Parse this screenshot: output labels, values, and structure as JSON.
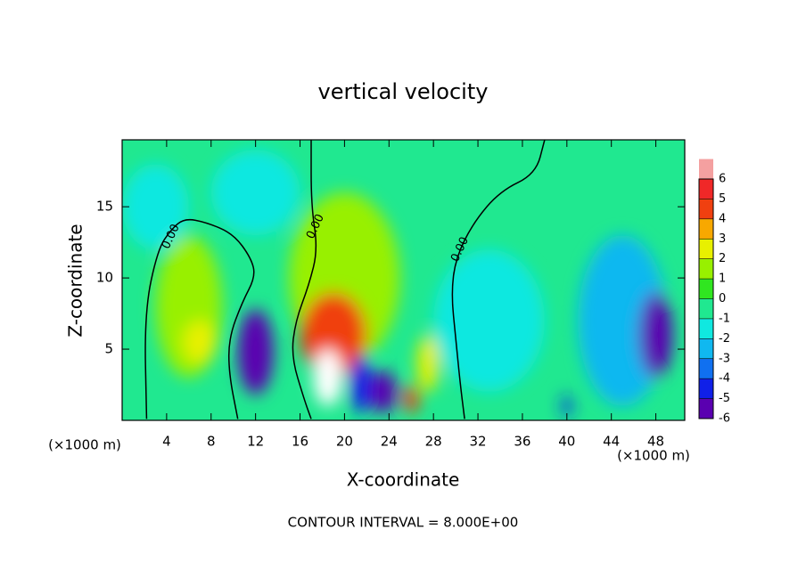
{
  "chart_data": {
    "type": "contour",
    "title": "vertical velocity",
    "xlabel": "X-coordinate",
    "ylabel": "Z-coordinate",
    "x_unit_labels": [
      "(×1000 m)",
      "(×1000 m)"
    ],
    "footer": "CONTOUR INTERVAL = 8.000E+00",
    "xlim": [
      0,
      50.6
    ],
    "ylim": [
      0,
      19.7
    ],
    "xticks": [
      4,
      8,
      12,
      16,
      20,
      24,
      28,
      32,
      36,
      40,
      44,
      48
    ],
    "yticks": [
      5,
      10,
      15
    ],
    "levels": [
      -6,
      -5,
      -4,
      -3,
      -2,
      -1,
      0,
      1,
      2,
      3,
      4,
      5,
      6
    ],
    "colors": [
      "#5a00b0",
      "#1020e8",
      "#1070f0",
      "#10b8f0",
      "#10e8e0",
      "#20e890",
      "#30e620",
      "#98f000",
      "#e8f000",
      "#f8a800",
      "#f04010",
      "#f02828",
      "#f4a0a0"
    ],
    "above_color": "#ffffff",
    "base_value": -0.5,
    "features": [
      {
        "x": 20,
        "y": 10,
        "value": 1.8,
        "rx": 5,
        "ry": 6
      },
      {
        "x": 6,
        "y": 8,
        "value": 1.5,
        "rx": 3,
        "ry": 5
      },
      {
        "x": 33,
        "y": 7,
        "value": -1.5,
        "rx": 5,
        "ry": 5
      },
      {
        "x": 45,
        "y": 7,
        "value": -2,
        "rx": 4,
        "ry": 6
      },
      {
        "x": 3,
        "y": 15,
        "value": -1.5,
        "rx": 3,
        "ry": 3
      },
      {
        "x": 12,
        "y": 16,
        "value": -1,
        "rx": 4,
        "ry": 3
      },
      {
        "x": 7,
        "y": 5.5,
        "value": 2.5,
        "rx": 1.5,
        "ry": 1.5
      },
      {
        "x": 19,
        "y": 6,
        "value": 4.5,
        "rx": 3,
        "ry": 3
      },
      {
        "x": 27.5,
        "y": 4,
        "value": 3,
        "rx": 1,
        "ry": 2
      },
      {
        "x": 12,
        "y": 4.8,
        "value": -5,
        "rx": 1.6,
        "ry": 3
      },
      {
        "x": 48,
        "y": 6,
        "value": -5,
        "rx": 1.5,
        "ry": 3
      },
      {
        "x": 21.5,
        "y": 2.5,
        "value": -4,
        "rx": 1,
        "ry": 2
      },
      {
        "x": 23.5,
        "y": 2,
        "value": -5,
        "rx": 1.2,
        "ry": 1.5
      },
      {
        "x": 26,
        "y": 1.5,
        "value": 5,
        "rx": 0.7,
        "ry": 1
      },
      {
        "x": 40,
        "y": 1,
        "value": -4,
        "rx": 0.4,
        "ry": 0.8
      },
      {
        "x": 18.5,
        "y": 3,
        "value": 9,
        "rx": 1.3,
        "ry": 2
      }
    ],
    "contours": [
      {
        "label": "0.00",
        "label_at": [
          4.4,
          12.9
        ],
        "points": [
          [
            2.2,
            0.1
          ],
          [
            2,
            7.6
          ],
          [
            3.2,
            12
          ],
          [
            4.4,
            13.4
          ],
          [
            5.6,
            14.2
          ],
          [
            7.6,
            13.9
          ],
          [
            10,
            13.1
          ],
          [
            11.6,
            11.4
          ],
          [
            12,
            10.1
          ],
          [
            10.8,
            8.3
          ],
          [
            9.6,
            5.8
          ],
          [
            9.6,
            3.3
          ],
          [
            10.4,
            0.1
          ]
        ]
      },
      {
        "label": "0.00",
        "label_at": [
          17.4,
          13.6
        ],
        "points": [
          [
            17,
            19.7
          ],
          [
            17,
            15.1
          ],
          [
            17.6,
            12
          ],
          [
            16.8,
            9.5
          ],
          [
            15.6,
            7
          ],
          [
            15.2,
            4.5
          ],
          [
            16.4,
            1.4
          ],
          [
            17,
            0.1
          ]
        ]
      },
      {
        "label": "0.00",
        "label_at": [
          30.4,
          12
        ],
        "points": [
          [
            38,
            19.7
          ],
          [
            37.2,
            17.3
          ],
          [
            34,
            16.1
          ],
          [
            31.6,
            13.9
          ],
          [
            30,
            11.4
          ],
          [
            29.6,
            8.9
          ],
          [
            30,
            5.8
          ],
          [
            30.4,
            2.6
          ],
          [
            30.8,
            0.1
          ]
        ]
      }
    ]
  }
}
